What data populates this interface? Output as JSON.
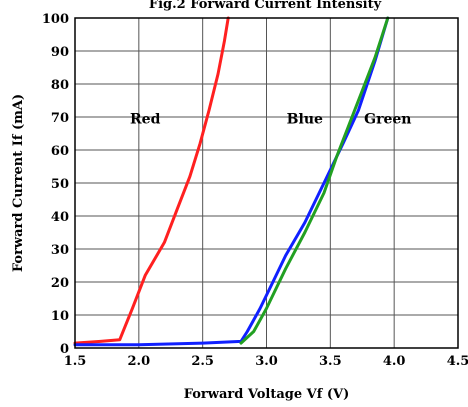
{
  "chart_data": {
    "type": "line",
    "title": "Fig.2 Forward Current Intensity",
    "xlabel": "Forward Voltage Vf (V)",
    "ylabel": "Forward Current If (mA)",
    "xlim": [
      1.5,
      4.5
    ],
    "ylim": [
      0,
      100
    ],
    "x_ticks": [
      "1.5",
      "2.0",
      "2.5",
      "3.0",
      "3.5",
      "4.0",
      "4.5"
    ],
    "y_ticks": [
      "0",
      "10",
      "20",
      "30",
      "40",
      "50",
      "60",
      "70",
      "80",
      "90",
      "100"
    ],
    "grid": true,
    "series": [
      {
        "name": "Red",
        "color": "#ff2020",
        "points": [
          [
            1.5,
            1.5
          ],
          [
            1.7,
            2
          ],
          [
            1.85,
            2.5
          ],
          [
            1.95,
            12
          ],
          [
            2.05,
            22
          ],
          [
            2.2,
            32
          ],
          [
            2.3,
            42
          ],
          [
            2.4,
            52
          ],
          [
            2.48,
            62
          ],
          [
            2.55,
            72
          ],
          [
            2.62,
            83
          ],
          [
            2.67,
            93
          ],
          [
            2.7,
            100
          ]
        ]
      },
      {
        "name": "Blue",
        "color": "#1020ff",
        "points": [
          [
            1.5,
            1
          ],
          [
            2.0,
            1
          ],
          [
            2.5,
            1.5
          ],
          [
            2.8,
            2
          ],
          [
            2.85,
            5
          ],
          [
            2.95,
            12
          ],
          [
            3.05,
            20
          ],
          [
            3.15,
            28
          ],
          [
            3.3,
            38
          ],
          [
            3.45,
            50
          ],
          [
            3.6,
            62
          ],
          [
            3.72,
            72
          ],
          [
            3.85,
            87
          ],
          [
            3.95,
            100
          ]
        ]
      },
      {
        "name": "Green",
        "color": "#22a022",
        "points": [
          [
            2.8,
            1.5
          ],
          [
            2.9,
            5
          ],
          [
            3.0,
            12
          ],
          [
            3.15,
            24
          ],
          [
            3.3,
            35
          ],
          [
            3.45,
            47
          ],
          [
            3.55,
            58
          ],
          [
            3.65,
            68
          ],
          [
            3.75,
            78
          ],
          [
            3.85,
            88
          ],
          [
            3.95,
            100
          ]
        ]
      }
    ]
  }
}
